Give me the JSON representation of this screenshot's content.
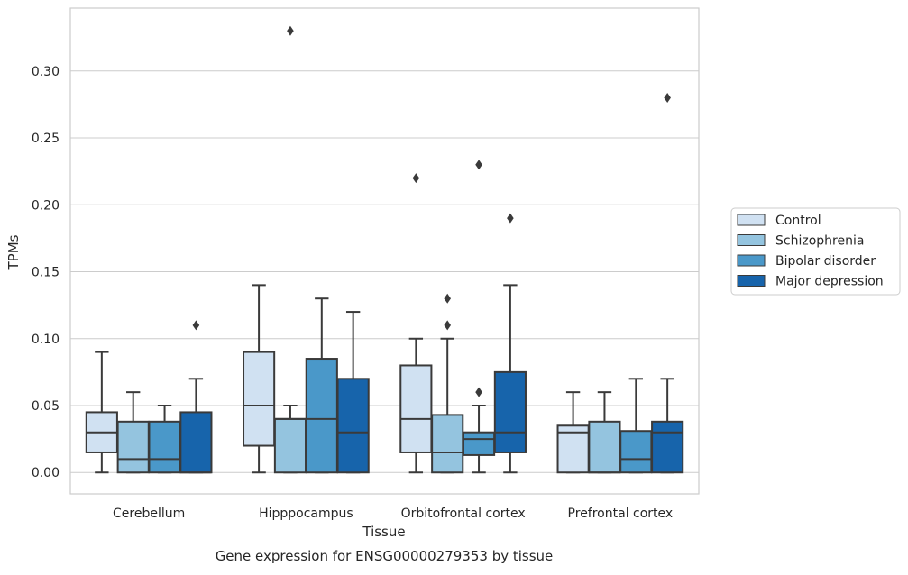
{
  "chart_data": {
    "type": "box",
    "title": "",
    "caption": "Gene expression for ENSG00000279353 by tissue",
    "xlabel": "Tissue",
    "ylabel": "TPMs",
    "ylim": [
      -0.016,
      0.347
    ],
    "yticks": [
      0.0,
      0.05,
      0.1,
      0.15,
      0.2,
      0.25,
      0.3
    ],
    "ytick_labels": [
      "0.00",
      "0.05",
      "0.10",
      "0.15",
      "0.20",
      "0.25",
      "0.30"
    ],
    "grid": "horizontal",
    "legend_position": "right",
    "categories": [
      "Cerebellum",
      "Hipppocampus",
      "Orbitofrontal cortex",
      "Prefrontal cortex"
    ],
    "series": [
      {
        "name": "Control",
        "color": "#d0e1f2",
        "boxes": [
          {
            "q1": 0.015,
            "median": 0.03,
            "q3": 0.045,
            "whislo": 0.0,
            "whishi": 0.09,
            "fliers": []
          },
          {
            "q1": 0.02,
            "median": 0.05,
            "q3": 0.09,
            "whislo": 0.0,
            "whishi": 0.14,
            "fliers": []
          },
          {
            "q1": 0.015,
            "median": 0.04,
            "q3": 0.08,
            "whislo": 0.0,
            "whishi": 0.1,
            "fliers": [
              0.22
            ]
          },
          {
            "q1": 0.0,
            "median": 0.03,
            "q3": 0.035,
            "whislo": 0.0,
            "whishi": 0.06,
            "fliers": []
          }
        ]
      },
      {
        "name": "Schizophrenia",
        "color": "#94c4df",
        "boxes": [
          {
            "q1": 0.0,
            "median": 0.01,
            "q3": 0.038,
            "whislo": 0.0,
            "whishi": 0.06,
            "fliers": []
          },
          {
            "q1": 0.0,
            "median": 0.04,
            "q3": 0.04,
            "whislo": 0.0,
            "whishi": 0.05,
            "fliers": [
              0.33
            ]
          },
          {
            "q1": 0.0,
            "median": 0.015,
            "q3": 0.043,
            "whislo": 0.0,
            "whishi": 0.1,
            "fliers": [
              0.11,
              0.13
            ]
          },
          {
            "q1": 0.0,
            "median": 0.0,
            "q3": 0.038,
            "whislo": 0.0,
            "whishi": 0.06,
            "fliers": []
          }
        ]
      },
      {
        "name": "Bipolar disorder",
        "color": "#4a98c9",
        "boxes": [
          {
            "q1": 0.0,
            "median": 0.01,
            "q3": 0.038,
            "whislo": 0.0,
            "whishi": 0.05,
            "fliers": []
          },
          {
            "q1": 0.0,
            "median": 0.04,
            "q3": 0.085,
            "whislo": 0.0,
            "whishi": 0.13,
            "fliers": []
          },
          {
            "q1": 0.013,
            "median": 0.025,
            "q3": 0.03,
            "whislo": 0.0,
            "whishi": 0.05,
            "fliers": [
              0.06,
              0.23
            ]
          },
          {
            "q1": 0.0,
            "median": 0.01,
            "q3": 0.031,
            "whislo": 0.0,
            "whishi": 0.07,
            "fliers": []
          }
        ]
      },
      {
        "name": "Major depression",
        "color": "#1764ab",
        "boxes": [
          {
            "q1": 0.0,
            "median": 0.0,
            "q3": 0.045,
            "whislo": 0.0,
            "whishi": 0.07,
            "fliers": [
              0.11
            ]
          },
          {
            "q1": 0.0,
            "median": 0.03,
            "q3": 0.07,
            "whislo": 0.0,
            "whishi": 0.12,
            "fliers": []
          },
          {
            "q1": 0.015,
            "median": 0.03,
            "q3": 0.075,
            "whislo": 0.0,
            "whishi": 0.14,
            "fliers": [
              0.19
            ]
          },
          {
            "q1": 0.0,
            "median": 0.03,
            "q3": 0.038,
            "whislo": 0.0,
            "whishi": 0.07,
            "fliers": [
              0.28
            ]
          }
        ]
      }
    ],
    "colors": {
      "grid": "#cccccc",
      "frame": "#cccccc",
      "box_edge": "#3a3a3a",
      "legend_border": "#cccccc"
    }
  }
}
